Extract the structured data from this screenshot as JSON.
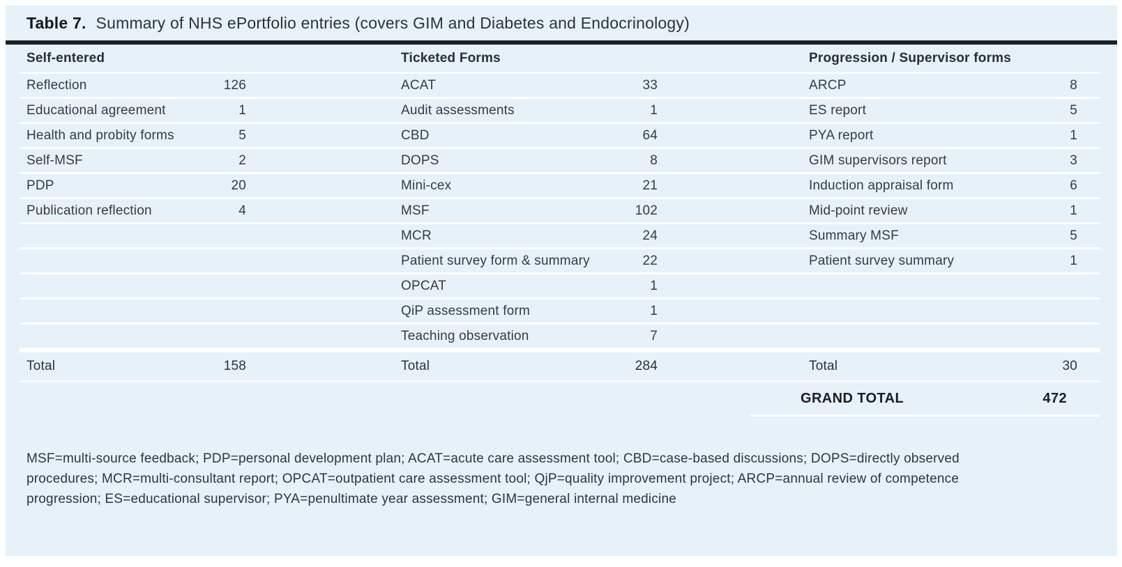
{
  "caption": {
    "number": "Table 7.",
    "title": "Summary of NHS ePortfolio entries (covers GIM and Diabetes and Endocrinology)"
  },
  "groups": [
    {
      "header": "Self-entered",
      "rows": [
        {
          "label": "Reflection",
          "value": 126
        },
        {
          "label": "Educational agreement",
          "value": 1
        },
        {
          "label": "Health and probity forms",
          "value": 5
        },
        {
          "label": "Self-MSF",
          "value": 2
        },
        {
          "label": "PDP",
          "value": 20
        },
        {
          "label": "Publication reflection",
          "value": 4
        }
      ],
      "total_label": "Total",
      "total_value": 158
    },
    {
      "header": "Ticketed Forms",
      "rows": [
        {
          "label": "ACAT",
          "value": 33
        },
        {
          "label": "Audit assessments",
          "value": 1
        },
        {
          "label": "CBD",
          "value": 64
        },
        {
          "label": "DOPS",
          "value": 8
        },
        {
          "label": "Mini-cex",
          "value": 21
        },
        {
          "label": "MSF",
          "value": 102
        },
        {
          "label": "MCR",
          "value": 24
        },
        {
          "label": "Patient survey form & summary",
          "value": 22
        },
        {
          "label": "OPCAT",
          "value": 1
        },
        {
          "label": "QiP assessment form",
          "value": 1
        },
        {
          "label": "Teaching observation",
          "value": 7
        }
      ],
      "total_label": "Total",
      "total_value": 284
    },
    {
      "header": "Progression / Supervisor forms",
      "rows": [
        {
          "label": "ARCP",
          "value": 8
        },
        {
          "label": "ES report",
          "value": 5
        },
        {
          "label": "PYA report",
          "value": 1
        },
        {
          "label": "GIM supervisors report",
          "value": 3
        },
        {
          "label": "Induction appraisal form",
          "value": 6
        },
        {
          "label": "Mid-point review",
          "value": 1
        },
        {
          "label": "Summary MSF",
          "value": 5
        },
        {
          "label": "Patient survey summary",
          "value": 1
        }
      ],
      "total_label": "Total",
      "total_value": 30
    }
  ],
  "grand_total": {
    "label": "GRAND TOTAL",
    "value": 472
  },
  "footnote": {
    "lines": [
      "MSF=multi-source feedback; PDP=personal development plan; ACAT=acute care assessment tool; CBD=case-based discussions; DOPS=directly observed",
      "procedures; MCR=multi-consultant report; OPCAT=outpatient care assessment tool; QjP=quality improvement project; ARCP=annual review of competence",
      "progression; ES=educational supervisor; PYA=penultimate year assessment; GIM=general internal medicine"
    ]
  },
  "colors": {
    "panel_background": "#e6f1fa",
    "row_separator": "#ffffff",
    "title_rule": "#1f2127",
    "text": "#363b42"
  }
}
